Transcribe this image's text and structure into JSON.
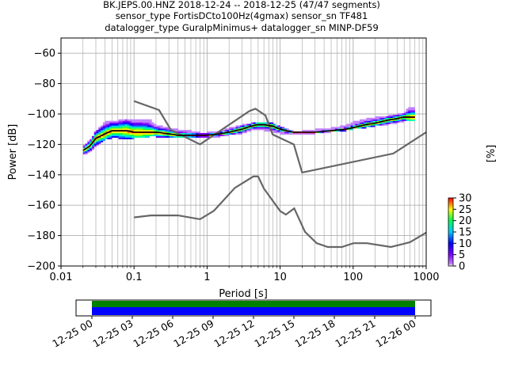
{
  "title_lines": [
    "BK.JEPS.00.HNZ   2018-12-24 -- 2018-12-25  (47/47 segments)",
    "sensor_type FortisDCto100Hz(4gmax) sensor_sn TF481",
    "datalogger_type GuralpMinimus+ datalogger_sn MINP-DF59"
  ],
  "chart_data": [
    {
      "type": "heatmap",
      "xlabel": "Period [s]",
      "ylabel": "Power [dB]",
      "xscale": "log",
      "xlim": [
        0.01,
        1000
      ],
      "ylim": [
        -200,
        -50
      ],
      "grid": true,
      "x_ticks": [
        0.01,
        0.1,
        1,
        10,
        100,
        1000
      ],
      "x_tick_labels": [
        "0.01",
        "0.1",
        "1",
        "10",
        "100",
        "1000"
      ],
      "y_ticks": [
        -60,
        -80,
        -100,
        -120,
        -140,
        -160,
        -180,
        -200
      ],
      "y_tick_labels": [
        "−60",
        "−80",
        "−100",
        "−120",
        "−140",
        "−160",
        "−180",
        "−200"
      ],
      "psd_density": {
        "description_colormap": "pqlx",
        "period": [
          0.02,
          0.025,
          0.03,
          0.04,
          0.05,
          0.06,
          0.08,
          0.1,
          0.13,
          0.16,
          0.2,
          0.3,
          0.4,
          0.6,
          0.8,
          1,
          1.5,
          2,
          3,
          4,
          5,
          6,
          8,
          10,
          15,
          20,
          30,
          50,
          80,
          100,
          150,
          200,
          300,
          400,
          500,
          600,
          700
        ],
        "power_low": [
          -126,
          -124,
          -120,
          -116,
          -115,
          -115,
          -116,
          -115,
          -115,
          -114,
          -114,
          -115,
          -115,
          -115,
          -115,
          -115,
          -114,
          -113,
          -112,
          -110,
          -110,
          -110,
          -111,
          -112,
          -113,
          -113,
          -112,
          -111,
          -110,
          -109,
          -108,
          -107,
          -106,
          -105,
          -104,
          -104,
          -104
        ],
        "power_high": [
          -122,
          -118,
          -112,
          -106,
          -105,
          -105,
          -104,
          -104,
          -104,
          -104,
          -108,
          -110,
          -111,
          -112,
          -113,
          -113,
          -112,
          -110,
          -108,
          -107,
          -106,
          -106,
          -107,
          -109,
          -112,
          -112,
          -111,
          -110,
          -108,
          -106,
          -104,
          -103,
          -102,
          -101,
          -100,
          -96,
          -96
        ],
        "mode_power": [
          -124,
          -121,
          -116,
          -113,
          -111,
          -111,
          -111,
          -112,
          -112,
          -112,
          -112,
          -113,
          -114,
          -114,
          -114,
          -114,
          -113,
          -112,
          -110,
          -108,
          -107,
          -107,
          -108,
          -110,
          -112,
          -112,
          -112,
          -111,
          -110,
          -109,
          -107,
          -106,
          -104,
          -103,
          -102,
          -102,
          -102
        ],
        "colors_by_percent": {
          "0": "#ffffff",
          "5": "#7b00ff",
          "10": "#0000ff",
          "15": "#00c8ff",
          "20": "#00ff55",
          "25": "#ffff00",
          "30": "#ff0000"
        }
      },
      "noise_models": {
        "NHNM": {
          "period": [
            0.1,
            0.22,
            0.32,
            0.8,
            3.8,
            4.6,
            6.3,
            7.9,
            15.4,
            20,
            354.8,
            1000
          ],
          "power": [
            -91.5,
            -97.4,
            -110.5,
            -120.0,
            -98.0,
            -96.5,
            -101.0,
            -113.5,
            -120.0,
            -138.5,
            -126.0,
            -112.0
          ]
        },
        "NLNM": {
          "period": [
            0.1,
            0.17,
            0.4,
            0.8,
            1.24,
            2.4,
            4.3,
            5.0,
            6.0,
            10.0,
            12.0,
            15.6,
            21.9,
            31.6,
            45.0,
            70.0,
            101.0,
            154.0,
            328.0,
            600.0,
            1000.0
          ],
          "power": [
            -168.0,
            -166.7,
            -166.7,
            -169.2,
            -163.7,
            -148.6,
            -141.1,
            -141.1,
            -149.0,
            -163.8,
            -166.2,
            -162.1,
            -177.5,
            -185.0,
            -187.5,
            -187.5,
            -185.0,
            -185.0,
            -187.5,
            -184.4,
            -178.0
          ]
        }
      },
      "colorbar": {
        "label": "[%]",
        "ticks": [
          0,
          5,
          10,
          15,
          20,
          25,
          30
        ],
        "tick_labels": [
          "0",
          "5",
          "10",
          "15",
          "20",
          "25",
          "30"
        ],
        "range": [
          0,
          30
        ]
      }
    },
    {
      "type": "bar",
      "description_kind": "data coverage timeline",
      "x_tick_labels": [
        "12-25 00",
        "12-25 03",
        "12-25 06",
        "12-25 09",
        "12-25 12",
        "12-25 15",
        "12-25 18",
        "12-25 21",
        "12-26 00"
      ],
      "coverage": [
        {
          "color": "#008000",
          "start": "12-25 00",
          "end": "12-26 00"
        },
        {
          "color": "#0000ff",
          "start": "12-25 00",
          "end": "12-26 00"
        }
      ]
    }
  ],
  "colors": {
    "noise_model": "#666666",
    "mode_line": "#000000",
    "grid": "#b0b0b0"
  }
}
